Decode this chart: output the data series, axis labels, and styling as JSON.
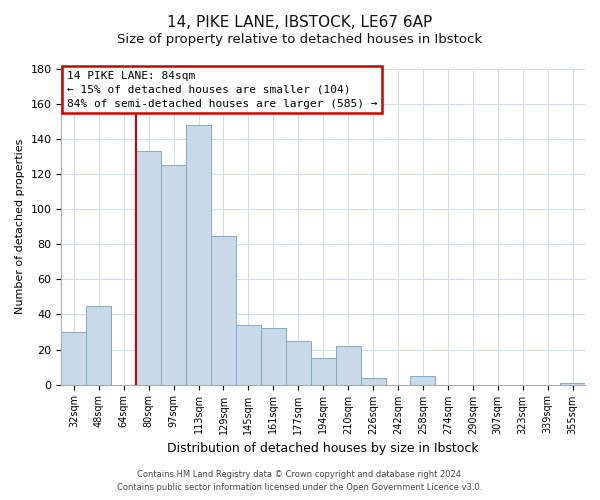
{
  "title": "14, PIKE LANE, IBSTOCK, LE67 6AP",
  "subtitle": "Size of property relative to detached houses in Ibstock",
  "xlabel": "Distribution of detached houses by size in Ibstock",
  "ylabel": "Number of detached properties",
  "bar_color": "#c8daea",
  "bar_edge_color": "#7baac8",
  "categories": [
    "32sqm",
    "48sqm",
    "64sqm",
    "80sqm",
    "97sqm",
    "113sqm",
    "129sqm",
    "145sqm",
    "161sqm",
    "177sqm",
    "194sqm",
    "210sqm",
    "226sqm",
    "242sqm",
    "258sqm",
    "274sqm",
    "290sqm",
    "307sqm",
    "323sqm",
    "339sqm",
    "355sqm"
  ],
  "values": [
    30,
    45,
    0,
    133,
    125,
    148,
    85,
    34,
    32,
    25,
    15,
    22,
    4,
    0,
    5,
    0,
    0,
    0,
    0,
    0,
    1
  ],
  "vline_index": 3,
  "vline_color": "#cc0000",
  "ylim": [
    0,
    180
  ],
  "yticks": [
    0,
    20,
    40,
    60,
    80,
    100,
    120,
    140,
    160,
    180
  ],
  "annotation_title": "14 PIKE LANE: 84sqm",
  "annotation_line1": "← 15% of detached houses are smaller (104)",
  "annotation_line2": "84% of semi-detached houses are larger (585) →",
  "annotation_box_color": "#ffffff",
  "annotation_box_edge": "#cc0000",
  "footer1": "Contains HM Land Registry data © Crown copyright and database right 2024.",
  "footer2": "Contains public sector information licensed under the Open Government Licence v3.0.",
  "grid_color": "#d0dce8",
  "title_fontsize": 11,
  "subtitle_fontsize": 9.5
}
